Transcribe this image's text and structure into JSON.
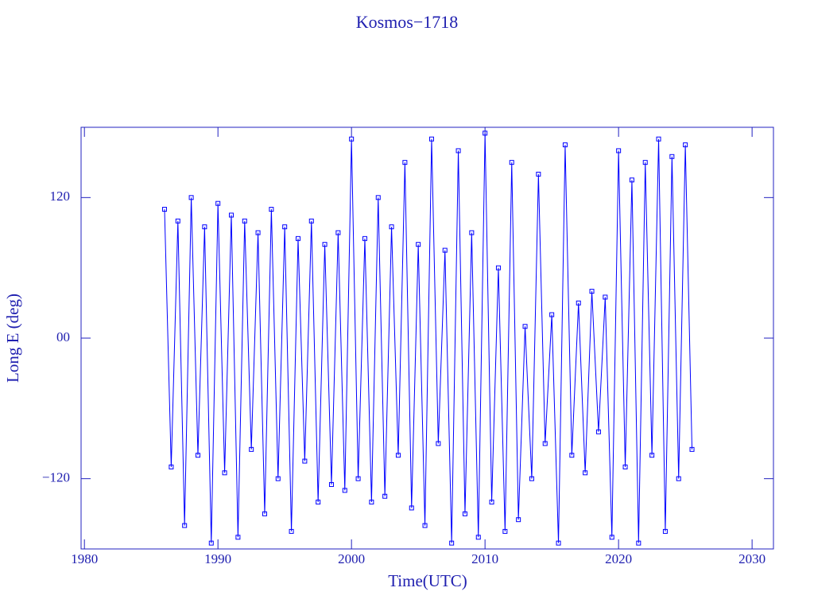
{
  "chart_data": {
    "type": "line",
    "title": "Kosmos−1718",
    "x_label": "Time(UTC)",
    "y_label": "Long E (deg)",
    "xlim": [
      1979.75,
      2031.6
    ],
    "ylim": [
      -180,
      180
    ],
    "xticks": [
      1980,
      1990,
      2000,
      2010,
      2020,
      2030
    ],
    "yticks": [
      {
        "value": 120,
        "label": "120"
      },
      {
        "value": 0,
        "label": "00"
      },
      {
        "value": -120,
        "label": "−120"
      }
    ],
    "grid": false,
    "series": [
      {
        "color": "#0000ff",
        "x": [
          1986.0,
          1986.5,
          1987.0,
          1987.5,
          1988.0,
          1988.5,
          1989.0,
          1989.5,
          1990.0,
          1990.5,
          1991.0,
          1991.5,
          1992.0,
          1992.5,
          1993.0,
          1993.5,
          1994.0,
          1994.5,
          1995.0,
          1995.5,
          1996.0,
          1996.5,
          1997.0,
          1997.5,
          1998.0,
          1998.5,
          1999.0,
          1999.5,
          2000.0,
          2000.5,
          2001.0,
          2001.5,
          2002.0,
          2002.5,
          2003.0,
          2003.5,
          2004.0,
          2004.5,
          2005.0,
          2005.5,
          2006.0,
          2006.5,
          2007.0,
          2007.5,
          2008.0,
          2008.5,
          2009.0,
          2009.5,
          2010.0,
          2010.5,
          2011.0,
          2011.5,
          2012.0,
          2012.5,
          2013.0,
          2013.5,
          2014.0,
          2014.5,
          2015.0,
          2015.5,
          2016.0,
          2016.5,
          2017.0,
          2017.5,
          2018.0,
          2018.5,
          2019.0,
          2019.5,
          2020.0,
          2020.5,
          2021.0,
          2021.5,
          2022.0,
          2022.5,
          2023.0,
          2023.5,
          2024.0,
          2024.5,
          2025.0,
          2025.5
        ],
        "values": [
          110,
          -110,
          100,
          -160,
          120,
          -100,
          95,
          -175,
          115,
          -115,
          105,
          -170,
          100,
          -95,
          90,
          -150,
          110,
          -120,
          95,
          -165,
          85,
          -105,
          100,
          -140,
          80,
          -125,
          90,
          -130,
          170,
          -120,
          85,
          -140,
          120,
          -135,
          95,
          -100,
          150,
          -145,
          80,
          -160,
          170,
          -90,
          75,
          -175,
          160,
          -150,
          90,
          -170,
          175,
          -140,
          60,
          -165,
          150,
          -155,
          10,
          -120,
          140,
          -90,
          20,
          -175,
          165,
          -100,
          30,
          -115,
          40,
          -80,
          35,
          -170,
          160,
          -110,
          135,
          -175,
          150,
          -100,
          170,
          -165,
          155,
          -120,
          165,
          -95
        ]
      }
    ]
  }
}
